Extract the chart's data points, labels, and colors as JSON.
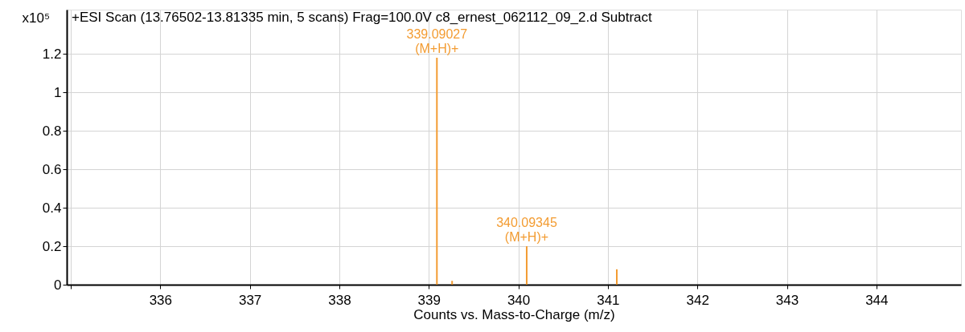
{
  "chart_data": {
    "type": "bar",
    "title": "+ESI Scan (13.76502-13.81335 min, 5 scans) Frag=100.0V c8_ernest_062112_09_2.d  Subtract",
    "xlabel": "Counts vs. Mass-to-Charge (m/z)",
    "ylabel": "x10⁵",
    "x": [
      339.09027,
      339.26,
      340.09345,
      341.1
    ],
    "values": [
      1.18,
      0.02,
      0.2,
      0.08
    ],
    "color": "#f39c32",
    "annotations": [
      {
        "text": "339.09027\n(M+H)+",
        "x": 339.09027,
        "y": 1.18
      },
      {
        "text": "340.09345\n(M+H)+",
        "x": 340.09345,
        "y": 0.2
      }
    ],
    "xlim": [
      335,
      344.9
    ],
    "xticks": [
      {
        "value": 335,
        "label": null
      },
      336,
      337,
      338,
      339,
      340,
      341,
      342,
      343,
      344
    ],
    "ylim": [
      0,
      1.43
    ],
    "yticks": [
      0,
      0.2,
      0.4,
      0.6,
      0.8,
      1,
      1.2
    ],
    "grid": true
  }
}
